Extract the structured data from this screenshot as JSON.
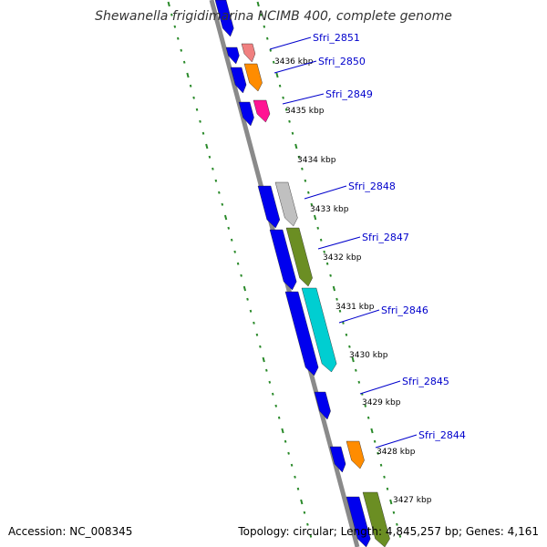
{
  "title": "Shewanella frigidimarina NCIMB 400, complete genome",
  "accession": "Accession: NC_008345",
  "summary": "Topology: circular; Length: 4,845,257 bp; Genes: 4,161",
  "colors": {
    "backbone": "#8a8a8a",
    "tick_dots": "#2a8a2a",
    "gene_strand": "#0000ee",
    "label": "#0000cc",
    "leader": "#0000cc"
  },
  "kbp_ticks": [
    {
      "label": "3436 kbp"
    },
    {
      "label": "3435 kbp"
    },
    {
      "label": "3434 kbp"
    },
    {
      "label": "3433 kbp"
    },
    {
      "label": "3432 kbp"
    },
    {
      "label": "3431 kbp"
    },
    {
      "label": "3430 kbp"
    },
    {
      "label": "3429 kbp"
    },
    {
      "label": "3428 kbp"
    },
    {
      "label": "3427 kbp"
    }
  ],
  "genes": [
    {
      "label": "Sfri_2851",
      "color": "#f08080"
    },
    {
      "label": "Sfri_2850",
      "color": "#ff8c00"
    },
    {
      "label": "Sfri_2849",
      "color": "#ff1493"
    },
    {
      "label": "Sfri_2848",
      "color": "#c0c0c0"
    },
    {
      "label": "Sfri_2847",
      "color": "#6b8e23"
    },
    {
      "label": "Sfri_2846",
      "color": "#00ced1"
    },
    {
      "label": "Sfri_2845",
      "color": "#0000ee"
    },
    {
      "label": "Sfri_2844",
      "color": "#ff8c00"
    },
    {
      "label": "",
      "color": "#6b8e23"
    }
  ]
}
